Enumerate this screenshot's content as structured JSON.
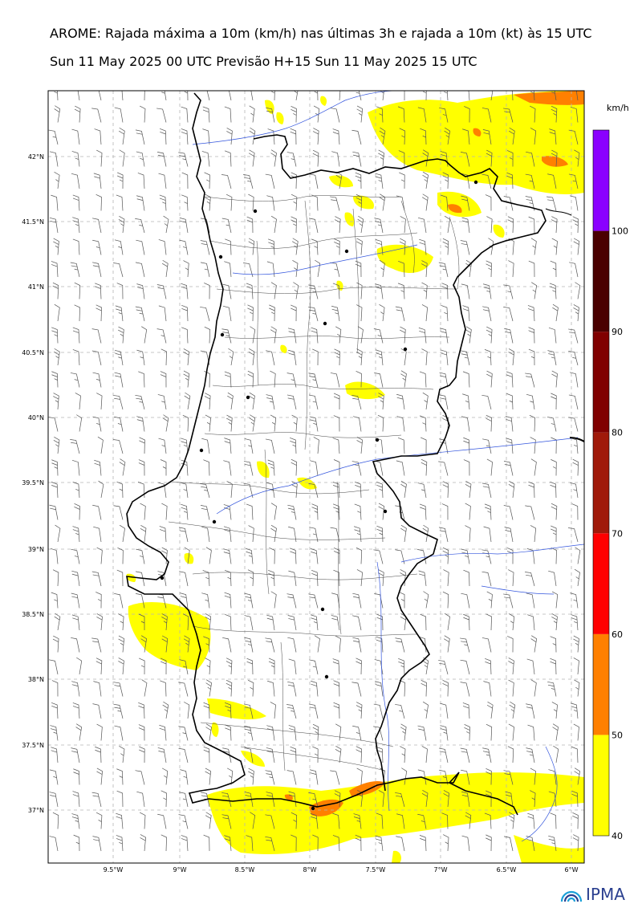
{
  "header": {
    "title": "AROME: Rajada máxima a 10m (km/h) nas últimas 3h e rajada a 10m (kt) às 15 UTC",
    "subtitle": "Sun 11 May 2025 00 UTC Previsão H+15 Sun 11 May 2025 15 UTC"
  },
  "axes": {
    "lat_ticks": [
      "42°N",
      "41.5°N",
      "41°N",
      "40.5°N",
      "40°N",
      "39.5°N",
      "39°N",
      "38.5°N",
      "38°N",
      "37.5°N",
      "37°N"
    ],
    "lon_ticks": [
      "9.5°W",
      "9°W",
      "8.5°W",
      "8°W",
      "7.5°W",
      "7°W",
      "6.5°W",
      "6°W"
    ]
  },
  "colorbar": {
    "unit": "km/h",
    "levels": [
      "40",
      "50",
      "60",
      "70",
      "80",
      "90",
      "100"
    ],
    "colors": [
      "#ffff00",
      "#ff8000",
      "#ff0000",
      "#a01a0a",
      "#800000",
      "#4a0000",
      "#8a00ff"
    ]
  },
  "logo": {
    "text": "IPMA"
  }
}
